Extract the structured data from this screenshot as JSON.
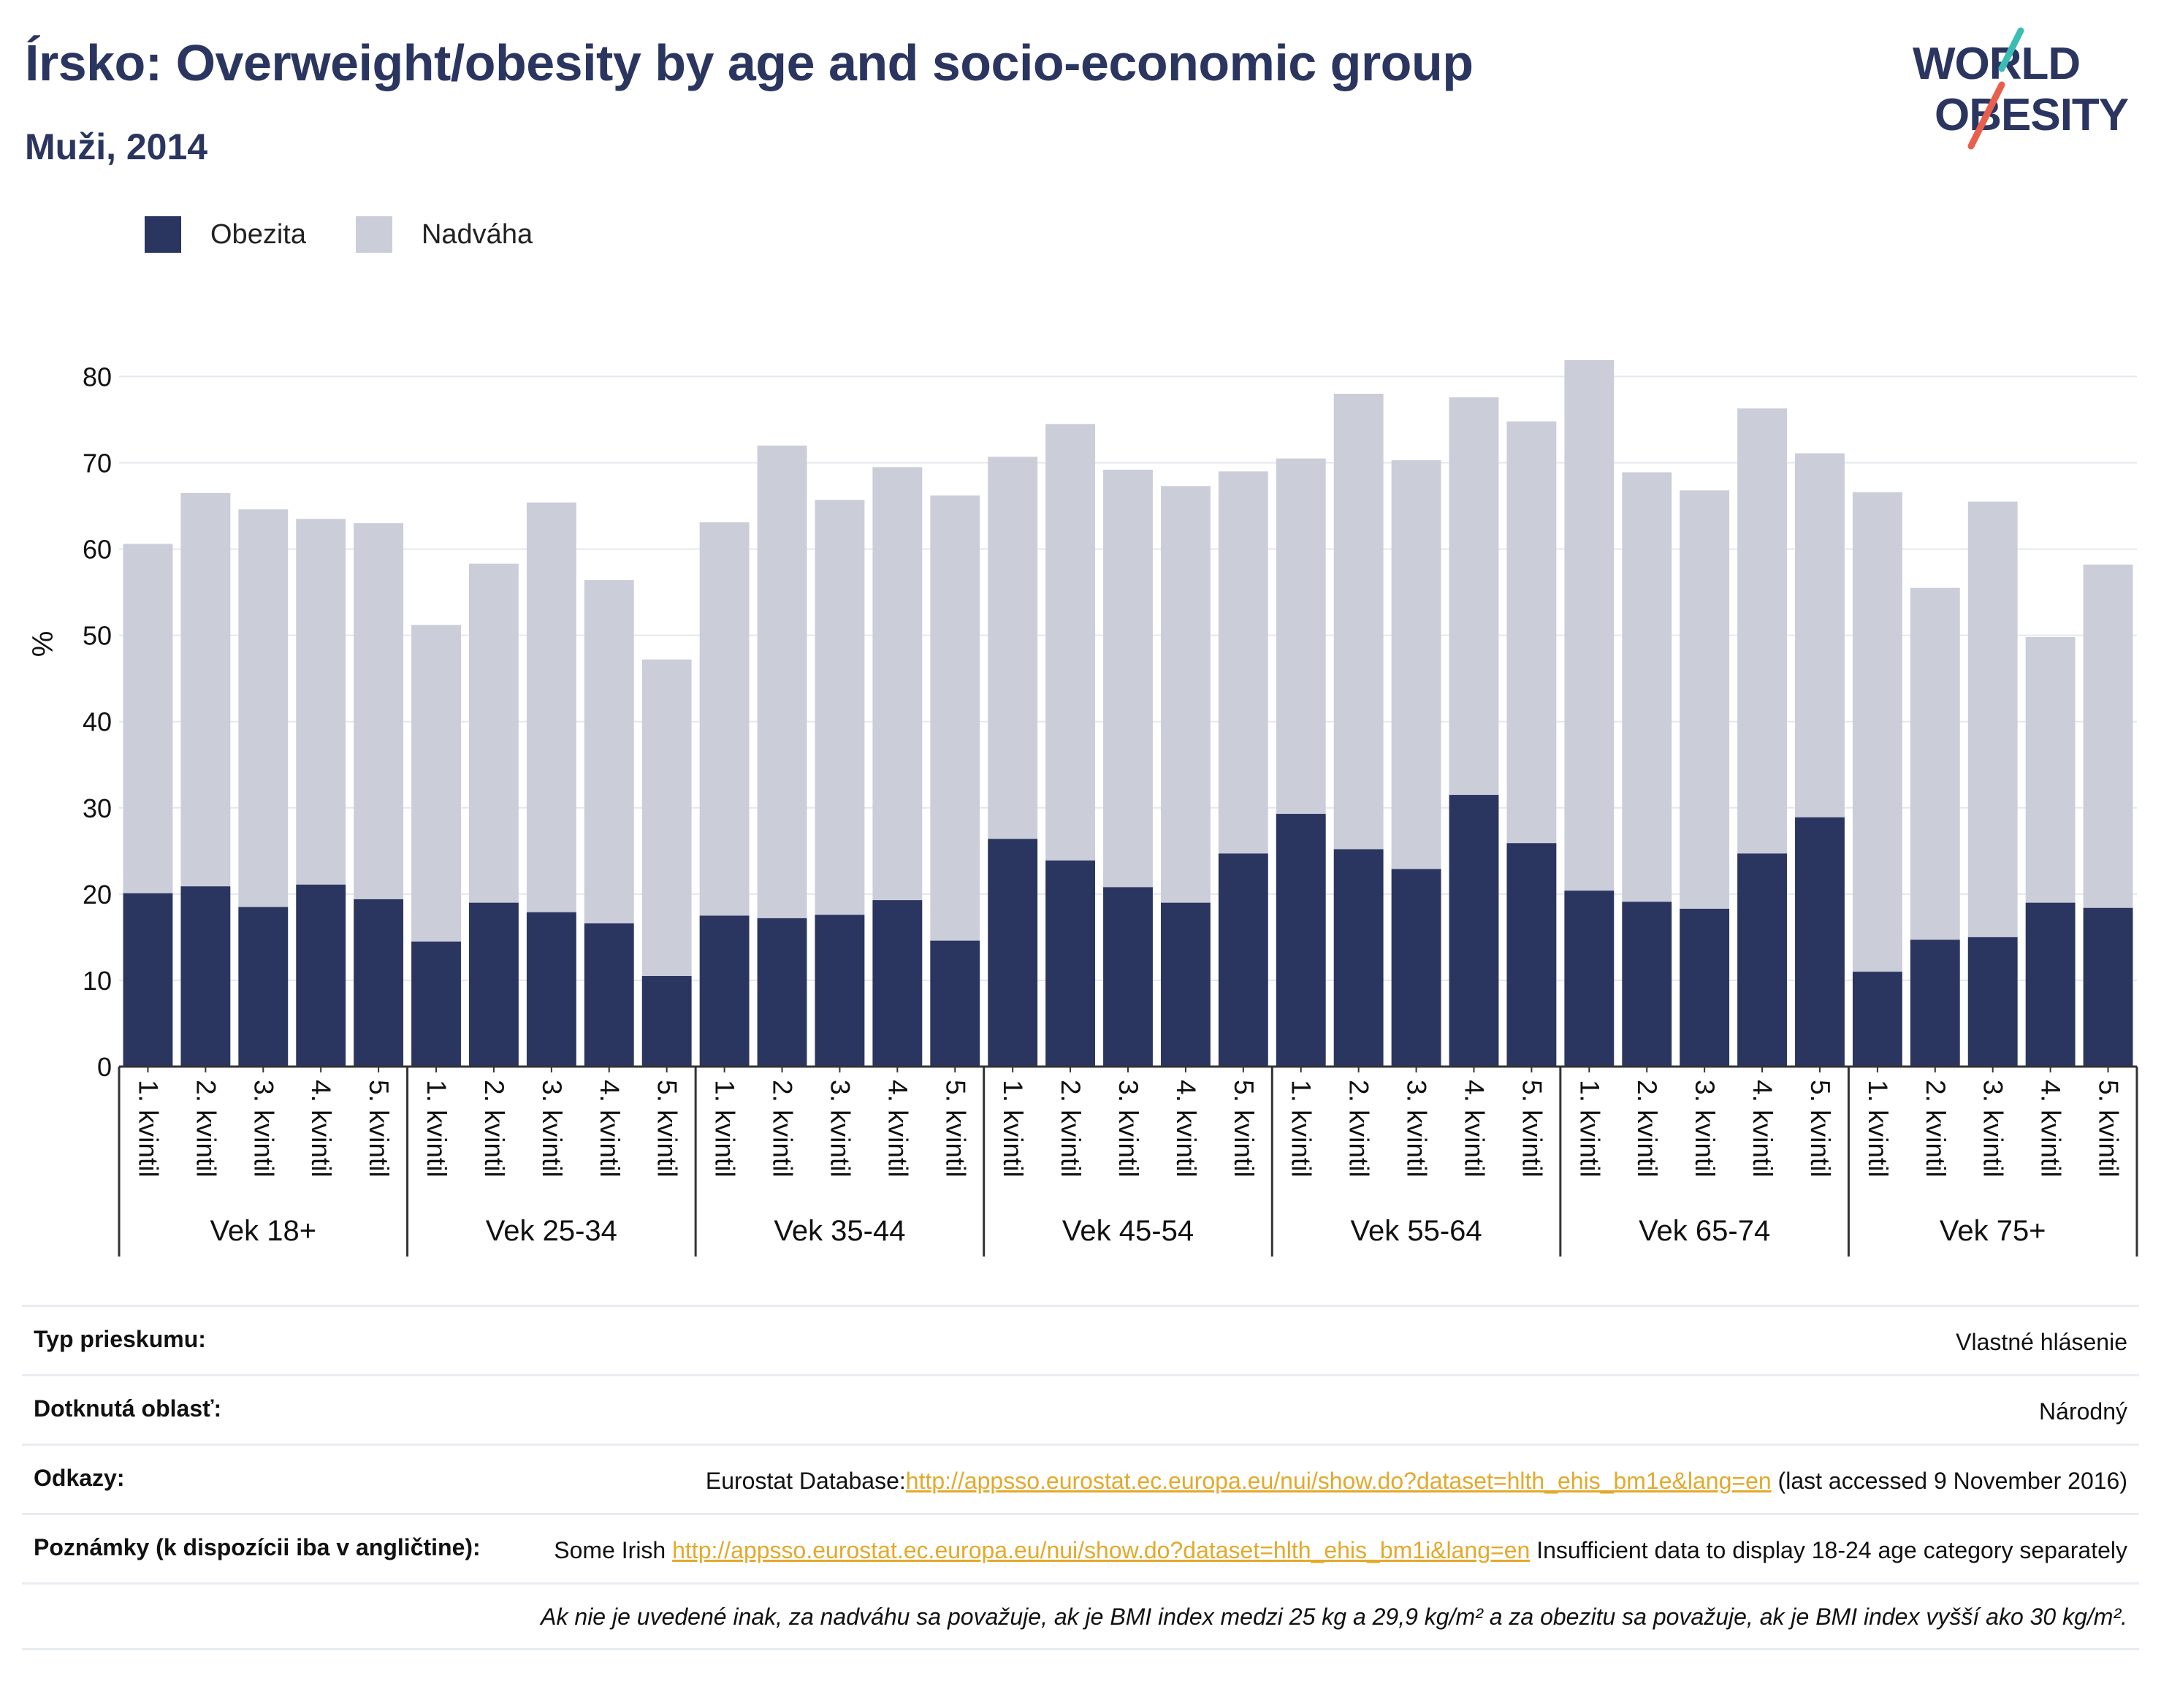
{
  "title": "Írsko: Overweight/obesity by age and socio-economic group",
  "subtitle": "Muži, 2014",
  "logo": {
    "line1": "WORLD",
    "line2": "OBESITY"
  },
  "legend": {
    "obesity": "Obezita",
    "overweight": "Nadváha"
  },
  "colors": {
    "obesity": "#2a3560",
    "overweight": "#cbcdd9",
    "link": "#e3a92c",
    "accent_teal": "#3bbdb6",
    "accent_red": "#e85f4d"
  },
  "chart_data": {
    "type": "bar",
    "stacked": true,
    "ylabel": "%",
    "ylim": [
      0,
      83
    ],
    "yticks": [
      0,
      10,
      20,
      30,
      40,
      50,
      60,
      70,
      80
    ],
    "grid": true,
    "legend_position": "top-left",
    "groups": [
      "Vek 18+",
      "Vek 25-34",
      "Vek 35-44",
      "Vek 45-54",
      "Vek 55-64",
      "Vek 65-74",
      "Vek 75+"
    ],
    "subcategories": [
      "1. kvintil",
      "2. kvintil",
      "3. kvintil",
      "4. kvintil",
      "5. kvintil"
    ],
    "series": [
      {
        "name": "Obezita",
        "values": [
          [
            20.1,
            20.9,
            18.5,
            21.1,
            19.4
          ],
          [
            14.5,
            19.0,
            17.9,
            16.6,
            10.5
          ],
          [
            17.5,
            17.2,
            17.6,
            19.3,
            14.6
          ],
          [
            26.4,
            23.9,
            20.8,
            19.0,
            24.7
          ],
          [
            29.3,
            25.2,
            22.9,
            31.5,
            25.9
          ],
          [
            20.4,
            19.1,
            18.3,
            24.7,
            28.9
          ],
          [
            11.0,
            14.7,
            15.0,
            19.0,
            18.4
          ]
        ]
      },
      {
        "name": "Nadváha",
        "values": [
          [
            40.5,
            45.6,
            46.1,
            42.4,
            43.6
          ],
          [
            36.7,
            39.3,
            47.5,
            39.8,
            36.7
          ],
          [
            45.6,
            54.8,
            48.1,
            50.2,
            51.6
          ],
          [
            44.3,
            50.6,
            48.4,
            48.3,
            44.3
          ],
          [
            41.2,
            52.8,
            47.4,
            46.1,
            48.9
          ],
          [
            61.5,
            49.8,
            48.5,
            51.6,
            42.2
          ],
          [
            55.6,
            40.8,
            50.5,
            30.8,
            39.8
          ]
        ]
      }
    ]
  },
  "info": {
    "survey_label": "Typ prieskumu:",
    "survey_value": "Vlastné hlásenie",
    "area_label": "Dotknutá oblasť:",
    "area_value": "Národný",
    "refs_label": "Odkazy:",
    "refs_prefix": "Eurostat Database:",
    "refs_link": "http://appsso.eurostat.ec.europa.eu/nui/show.do?dataset=hlth_ehis_bm1e&lang=en",
    "refs_suffix": " (last accessed 9 November 2016)",
    "notes_label": "Poznámky (k dispozícii iba v angličtine):",
    "notes_prefix": "Some Irish ",
    "notes_link": "http://appsso.eurostat.ec.europa.eu/nui/show.do?dataset=hlth_ehis_bm1i&lang=en",
    "notes_suffix": " Insufficient data to display 18-24 age category separately",
    "footnote": "Ak nie je uvedené inak, za nadváhu sa považuje, ak je BMI index medzi 25 kg a 29,9 kg/m² a za obezitu sa považuje, ak je BMI index vyšší ako 30 kg/m²."
  }
}
